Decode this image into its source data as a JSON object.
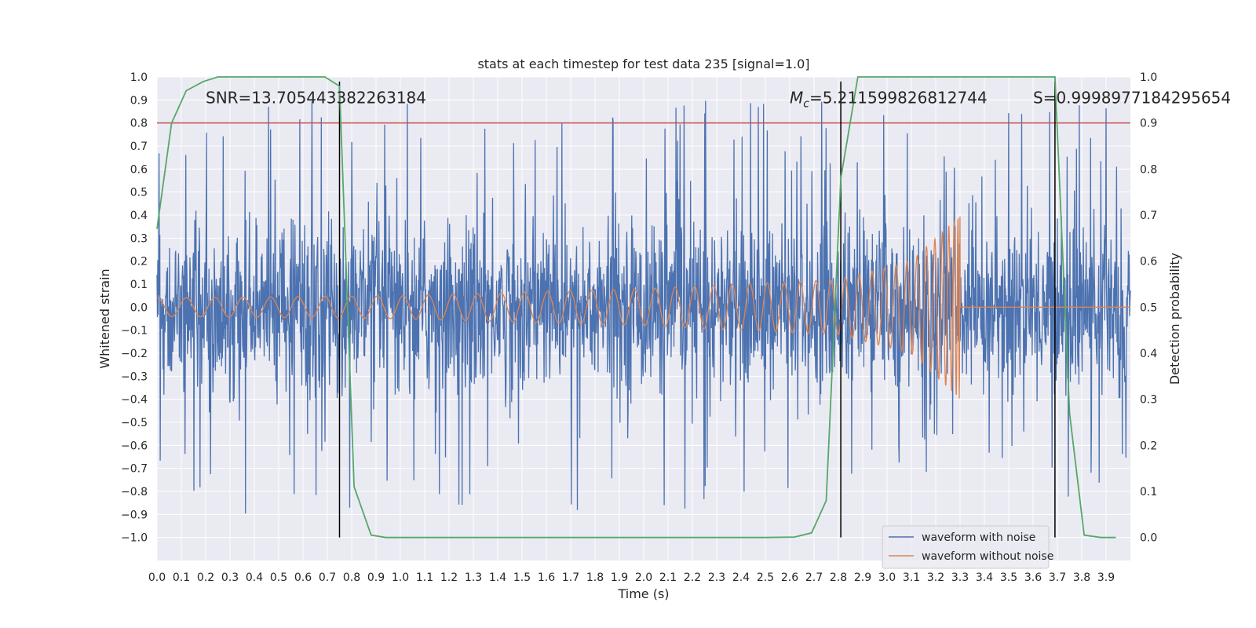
{
  "chart_data": {
    "type": "line",
    "title": "stats at each timestep for test data 235 [signal=1.0]",
    "xlabel": "Time (s)",
    "ylabel": "Whitened strain",
    "ylabel_right": "Detection probability",
    "xlim": [
      0.0,
      4.0
    ],
    "ylim": [
      -1.1,
      1.0
    ],
    "ylim_right": [
      -0.05,
      1.0
    ],
    "x_ticks": [
      0.0,
      0.1,
      0.2,
      0.3,
      0.4,
      0.5,
      0.6,
      0.7,
      0.8,
      0.9,
      1.0,
      1.1,
      1.2,
      1.3,
      1.4,
      1.5,
      1.6,
      1.7,
      1.8,
      1.9,
      2.0,
      2.1,
      2.2,
      2.3,
      2.4,
      2.5,
      2.6,
      2.7,
      2.8,
      2.9,
      3.0,
      3.1,
      3.2,
      3.3,
      3.4,
      3.5,
      3.6,
      3.7,
      3.8,
      3.9
    ],
    "y_ticks": [
      1.0,
      0.9,
      0.8,
      0.7,
      0.6,
      0.5,
      0.4,
      0.3,
      0.2,
      0.1,
      0.0,
      -0.1,
      -0.2,
      -0.3,
      -0.4,
      -0.5,
      -0.6,
      -0.7,
      -0.8,
      -0.9,
      -1.0
    ],
    "y_ticks_right": [
      1.0,
      0.9,
      0.8,
      0.7,
      0.6,
      0.5,
      0.4,
      0.3,
      0.2,
      0.1,
      0.0
    ],
    "grid": true,
    "legend_position": "lower right",
    "series": [
      {
        "name": "waveform with noise",
        "color": "#4c72b0",
        "axis": "left",
        "kind": "noise",
        "amplitude_typical": 0.45,
        "amplitude_peaks": 0.9,
        "x_range": [
          0.0,
          4.0
        ]
      },
      {
        "name": "waveform without noise",
        "color": "#dd8452",
        "axis": "left",
        "kind": "chirp",
        "merger_time": 3.3,
        "amplitude_at": [
          [
            0.0,
            0.04
          ],
          [
            1.0,
            0.05
          ],
          [
            2.0,
            0.08
          ],
          [
            2.8,
            0.12
          ],
          [
            3.1,
            0.2
          ],
          [
            3.3,
            0.4
          ]
        ],
        "x_range": [
          0.0,
          4.0
        ]
      },
      {
        "color": "#55a868",
        "axis": "right",
        "x": [
          0.0,
          0.06,
          0.12,
          0.19,
          0.25,
          0.31,
          0.38,
          0.44,
          0.5,
          0.56,
          0.62,
          0.69,
          0.75,
          0.81,
          0.88,
          0.94,
          1.0,
          1.5,
          2.0,
          2.5,
          2.62,
          2.69,
          2.75,
          2.81,
          2.88,
          2.94,
          3.0,
          3.5,
          3.69,
          3.75,
          3.81,
          3.88,
          3.94
        ],
        "y": [
          0.67,
          0.9,
          0.97,
          0.99,
          1.0,
          1.0,
          1.0,
          1.0,
          1.0,
          1.0,
          1.0,
          1.0,
          0.98,
          0.11,
          0.005,
          0.0,
          0.0,
          0.0,
          0.0,
          0.0,
          0.001,
          0.01,
          0.08,
          0.78,
          1.0,
          1.0,
          1.0,
          1.0,
          1.0,
          0.27,
          0.005,
          0.0,
          0.0
        ]
      }
    ],
    "threshold_line": {
      "color": "#c44e52",
      "y_right": 0.9
    },
    "vertical_lines": [
      0.75,
      2.81,
      3.69
    ],
    "annotations": [
      {
        "text": "SNR=13.705443382263184",
        "x": 0.2,
        "y": 0.9
      },
      {
        "text": "=5.211599826812744",
        "math_prefix": "M",
        "math_sub": "c",
        "x": 2.6,
        "y": 0.9
      },
      {
        "text": "S=0.9998977184295654",
        "x": 3.6,
        "y": 0.9
      }
    ]
  }
}
